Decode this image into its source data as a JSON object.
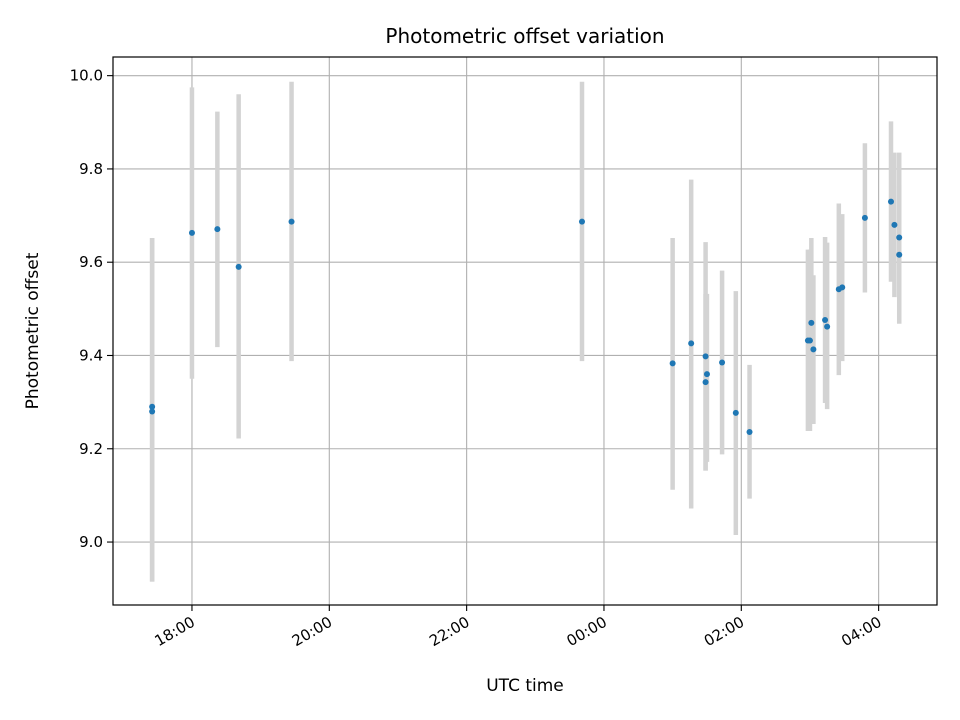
{
  "chart_data": {
    "type": "scatter",
    "title": "Photometric offset variation",
    "xlabel": "UTC time",
    "ylabel": "Photometric offset",
    "x_unit": "hours (UTC, continuing past midnight)",
    "xlim": [
      16.85,
      28.85
    ],
    "ylim": [
      8.865,
      10.04
    ],
    "x_ticks": [
      {
        "value": 18,
        "label": "18:00"
      },
      {
        "value": 20,
        "label": "20:00"
      },
      {
        "value": 22,
        "label": "22:00"
      },
      {
        "value": 24,
        "label": "00:00"
      },
      {
        "value": 26,
        "label": "02:00"
      },
      {
        "value": 28,
        "label": "04:00"
      }
    ],
    "y_ticks": [
      {
        "value": 9.0,
        "label": "9.0"
      },
      {
        "value": 9.2,
        "label": "9.2"
      },
      {
        "value": 9.4,
        "label": "9.4"
      },
      {
        "value": 9.6,
        "label": "9.6"
      },
      {
        "value": 9.8,
        "label": "9.8"
      },
      {
        "value": 10.0,
        "label": "10.0"
      }
    ],
    "grid": true,
    "colors": {
      "point": "#1f77b4",
      "errorbar": "#d3d3d3",
      "grid": "#b0b0b0"
    },
    "points": [
      {
        "x": 17.42,
        "y": 9.29,
        "lo": 8.915,
        "hi": 9.652
      },
      {
        "x": 17.42,
        "y": 9.28,
        "lo": 8.915,
        "hi": 9.652
      },
      {
        "x": 18.0,
        "y": 9.663,
        "lo": 9.35,
        "hi": 9.975
      },
      {
        "x": 18.37,
        "y": 9.671,
        "lo": 9.418,
        "hi": 9.923
      },
      {
        "x": 18.68,
        "y": 9.59,
        "lo": 9.222,
        "hi": 9.96
      },
      {
        "x": 19.45,
        "y": 9.687,
        "lo": 9.388,
        "hi": 9.987
      },
      {
        "x": 23.68,
        "y": 9.687,
        "lo": 9.388,
        "hi": 9.987
      },
      {
        "x": 25.0,
        "y": 9.383,
        "lo": 9.112,
        "hi": 9.652
      },
      {
        "x": 25.27,
        "y": 9.426,
        "lo": 9.072,
        "hi": 9.777
      },
      {
        "x": 25.48,
        "y": 9.398,
        "lo": 9.153,
        "hi": 9.643
      },
      {
        "x": 25.5,
        "y": 9.36,
        "lo": 9.172,
        "hi": 9.532
      },
      {
        "x": 25.48,
        "y": 9.343,
        "lo": 9.153,
        "hi": 9.532
      },
      {
        "x": 25.72,
        "y": 9.385,
        "lo": 9.188,
        "hi": 9.582
      },
      {
        "x": 25.92,
        "y": 9.277,
        "lo": 9.015,
        "hi": 9.538
      },
      {
        "x": 26.12,
        "y": 9.236,
        "lo": 9.093,
        "hi": 9.38
      },
      {
        "x": 26.97,
        "y": 9.432,
        "lo": 9.238,
        "hi": 9.627
      },
      {
        "x": 27.0,
        "y": 9.432,
        "lo": 9.238,
        "hi": 9.627
      },
      {
        "x": 27.02,
        "y": 9.47,
        "lo": 9.288,
        "hi": 9.652
      },
      {
        "x": 27.05,
        "y": 9.413,
        "lo": 9.253,
        "hi": 9.572
      },
      {
        "x": 27.22,
        "y": 9.476,
        "lo": 9.298,
        "hi": 9.654
      },
      {
        "x": 27.25,
        "y": 9.462,
        "lo": 9.285,
        "hi": 9.642
      },
      {
        "x": 27.42,
        "y": 9.542,
        "lo": 9.358,
        "hi": 9.726
      },
      {
        "x": 27.47,
        "y": 9.546,
        "lo": 9.388,
        "hi": 9.703
      },
      {
        "x": 27.8,
        "y": 9.695,
        "lo": 9.535,
        "hi": 9.855
      },
      {
        "x": 28.18,
        "y": 9.73,
        "lo": 9.558,
        "hi": 9.902
      },
      {
        "x": 28.23,
        "y": 9.68,
        "lo": 9.525,
        "hi": 9.835
      },
      {
        "x": 28.3,
        "y": 9.616,
        "lo": 9.468,
        "hi": 9.765
      },
      {
        "x": 28.3,
        "y": 9.653,
        "lo": 9.47,
        "hi": 9.835
      }
    ]
  }
}
